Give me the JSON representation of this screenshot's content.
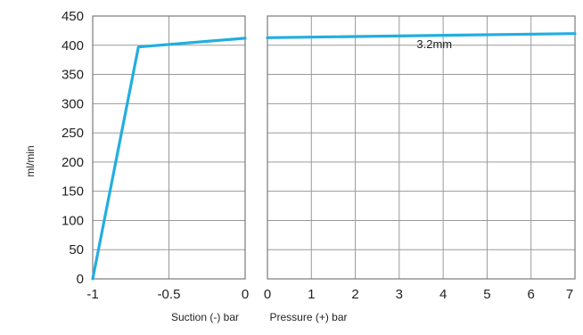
{
  "chart_data": [
    {
      "type": "line",
      "xlabel": "Suction (-) bar",
      "ylabel": "ml/min",
      "xlim": [
        -1,
        0
      ],
      "ylim": [
        0,
        450
      ],
      "x_ticks": [
        "-1",
        "-0.5",
        "0"
      ],
      "y_ticks": [
        "0",
        "50",
        "100",
        "150",
        "200",
        "250",
        "300",
        "350",
        "400",
        "450"
      ],
      "grid": true,
      "series": [
        {
          "x": [
            -1,
            -0.7,
            0
          ],
          "y": [
            0,
            397,
            412
          ]
        }
      ]
    },
    {
      "type": "line",
      "xlabel": "Pressure (+) bar",
      "xlim": [
        0,
        7
      ],
      "ylim": [
        0,
        450
      ],
      "x_ticks": [
        "0",
        "1",
        "2",
        "3",
        "4",
        "5",
        "6",
        "7"
      ],
      "grid": true,
      "annotation": "3.2mm",
      "series": [
        {
          "x": [
            0,
            7
          ],
          "y": [
            413,
            420
          ]
        }
      ]
    }
  ],
  "colors": {
    "series": "#22aee0",
    "grid": "#9a9a9a"
  }
}
